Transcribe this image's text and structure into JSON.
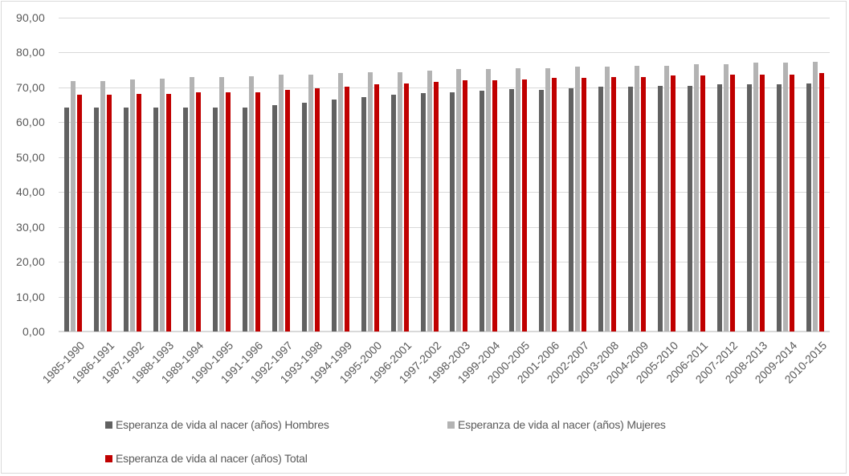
{
  "chart_data": {
    "type": "bar",
    "title": "",
    "xlabel": "",
    "ylabel": "",
    "ylim": [
      0,
      90
    ],
    "yticks": [
      "0,00",
      "10,00",
      "20,00",
      "30,00",
      "40,00",
      "50,00",
      "60,00",
      "70,00",
      "80,00",
      "90,00"
    ],
    "grid": true,
    "legend_position": "bottom",
    "categories": [
      "1985-1990",
      "1986-1991",
      "1987-1992",
      "1988-1993",
      "1989-1994",
      "1990-1995",
      "1991-1996",
      "1992-1997",
      "1993-1998",
      "1994-1999",
      "1995-2000",
      "1996-2001",
      "1997-2002",
      "1998-2003",
      "1999-2004",
      "2000-2005",
      "2001-2006",
      "2002-2007",
      "2003-2008",
      "2004-2009",
      "2005-2010",
      "2006-2011",
      "2007-2012",
      "2008-2013",
      "2009-2014",
      "2010-2015"
    ],
    "series": [
      {
        "name": "Esperanza de vida al nacer (años) Hombres",
        "color": "#616161",
        "values": [
          64.3,
          64.3,
          64.3,
          64.3,
          64.3,
          64.3,
          64.3,
          65.0,
          65.7,
          66.5,
          67.1,
          67.9,
          68.3,
          68.7,
          69.0,
          69.4,
          69.3,
          69.8,
          70.1,
          70.1,
          70.5,
          70.4,
          70.9,
          70.9,
          70.9,
          71.2
        ]
      },
      {
        "name": "Esperanza de vida al nacer (años) Mujeres",
        "color": "#b3b3b3",
        "values": [
          71.9,
          71.9,
          72.3,
          72.6,
          72.9,
          72.9,
          73.3,
          73.6,
          73.6,
          74.1,
          74.4,
          74.4,
          74.8,
          75.2,
          75.2,
          75.6,
          75.5,
          75.9,
          75.9,
          76.3,
          76.3,
          76.6,
          76.6,
          77.0,
          77.0,
          77.3
        ]
      },
      {
        "name": "Esperanza de vida al nacer (años) Total",
        "color": "#c00000",
        "values": [
          67.8,
          67.8,
          68.2,
          68.2,
          68.6,
          68.6,
          68.6,
          69.3,
          69.8,
          70.1,
          70.9,
          71.2,
          71.6,
          72.0,
          72.0,
          72.3,
          72.7,
          72.7,
          73.0,
          73.0,
          73.4,
          73.4,
          73.7,
          73.7,
          73.7,
          74.1
        ]
      }
    ]
  },
  "legend": {
    "items": [
      {
        "label": "Esperanza de vida al nacer (años) Hombres",
        "color": "#616161"
      },
      {
        "label": "Esperanza de vida al nacer (años) Mujeres",
        "color": "#b3b3b3"
      },
      {
        "label": "Esperanza de vida al nacer (años) Total",
        "color": "#c00000"
      }
    ]
  }
}
